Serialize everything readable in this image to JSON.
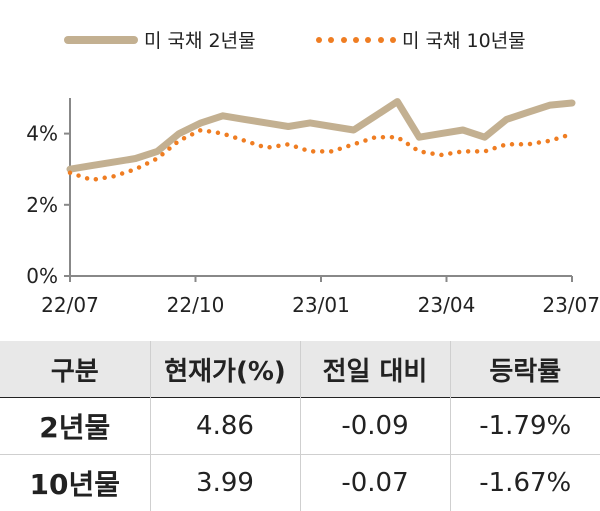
{
  "legend": {
    "series1_label": "미 국채 2년물",
    "series2_label": "미 국채 10년물"
  },
  "colors": {
    "series1": "#c3b091",
    "series2": "#ef7d22",
    "axis": "#888888"
  },
  "chart_data": {
    "type": "line",
    "title": "",
    "xlabel": "",
    "ylabel": "",
    "ylim": [
      0,
      5
    ],
    "yticks": [
      0,
      2,
      4
    ],
    "yticklabels": [
      "0%",
      "2%",
      "4%"
    ],
    "xticklabels": [
      "22/07",
      "22/10",
      "23/01",
      "23/04",
      "23/07"
    ],
    "x": [
      "22/07",
      "22/08a",
      "22/08b",
      "22/09a",
      "22/09b",
      "22/10a",
      "22/10b",
      "22/11a",
      "22/11b",
      "22/12a",
      "22/12b",
      "23/01a",
      "23/01b",
      "23/02a",
      "23/02b",
      "23/03a",
      "23/03b",
      "23/04a",
      "23/04b",
      "23/05a",
      "23/05b",
      "23/06a",
      "23/06b",
      "23/07"
    ],
    "series": [
      {
        "name": "미 국채 2년물",
        "style": "solid",
        "values": [
          3.0,
          3.1,
          3.2,
          3.3,
          3.5,
          4.0,
          4.3,
          4.5,
          4.4,
          4.3,
          4.2,
          4.3,
          4.2,
          4.1,
          4.5,
          4.9,
          3.9,
          4.0,
          4.1,
          3.9,
          4.4,
          4.6,
          4.8,
          4.86
        ]
      },
      {
        "name": "미 국채 10년물",
        "style": "dotted",
        "values": [
          2.9,
          2.7,
          2.8,
          3.0,
          3.3,
          3.8,
          4.1,
          4.0,
          3.8,
          3.6,
          3.7,
          3.5,
          3.5,
          3.7,
          3.9,
          3.9,
          3.5,
          3.4,
          3.5,
          3.5,
          3.7,
          3.7,
          3.8,
          3.99
        ]
      }
    ]
  },
  "table": {
    "headers": [
      "구분",
      "현재가(%)",
      "전일 대비",
      "등락률"
    ],
    "rows": [
      [
        "2년물",
        "4.86",
        "-0.09",
        "-1.79%"
      ],
      [
        "10년물",
        "3.99",
        "-0.07",
        "-1.67%"
      ]
    ]
  }
}
